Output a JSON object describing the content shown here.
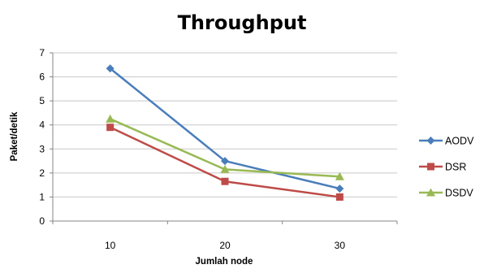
{
  "chart_data": {
    "type": "line",
    "title": "Throughput",
    "xlabel": "Jumlah node",
    "ylabel": "Paket/detik",
    "categories": [
      "10",
      "20",
      "30"
    ],
    "ylim": [
      0,
      7
    ],
    "yticks": [
      "0",
      "1",
      "2",
      "3",
      "4",
      "5",
      "6",
      "7"
    ],
    "grid": true,
    "legend_position": "right",
    "series": [
      {
        "name": "AODV",
        "values": [
          6.35,
          2.5,
          1.35
        ],
        "color": "#4A7EBB",
        "marker": "diamond"
      },
      {
        "name": "DSR",
        "values": [
          3.9,
          1.65,
          1.0
        ],
        "color": "#BE4B48",
        "marker": "square"
      },
      {
        "name": "DSDV",
        "values": [
          4.25,
          2.15,
          1.85
        ],
        "color": "#98B954",
        "marker": "triangle"
      }
    ]
  }
}
